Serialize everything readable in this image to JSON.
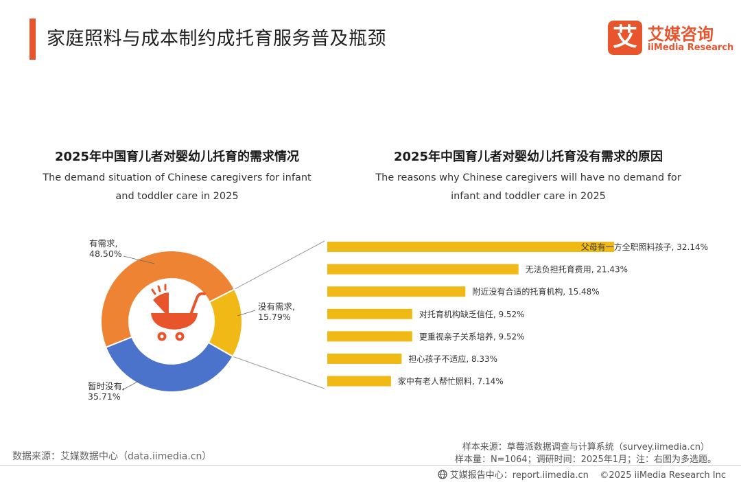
{
  "page": {
    "title": "家庭照料与成本制约成托育服务普及瓶颈"
  },
  "brand": {
    "logo_char": "艾",
    "name_cn": "艾媒咨询",
    "name_en": "iiMedia Research",
    "color": "#e8552d"
  },
  "colors": {
    "accent": "#e8552d",
    "orange": "#ee8334",
    "yellow": "#f1b915",
    "blue": "#4b73cc",
    "icon": "#e8552d",
    "connector": "#9a9a9a"
  },
  "chart_data": [
    {
      "type": "pie",
      "title": "2025年中国育儿者对婴幼儿托育的需求情况",
      "subtitle": "The demand situation of Chinese caregivers for infant and toddler care in 2025",
      "subtitle_lines": [
        "The demand situation of Chinese caregivers for infant",
        "and toddler care in 2025"
      ],
      "style": "donut",
      "center_icon": "stroller-icon",
      "slices": [
        {
          "label": "有需求,",
          "value": 48.5,
          "value_label": "48.50%",
          "color": "#ee8334"
        },
        {
          "label": "没有需求,",
          "value": 15.79,
          "value_label": "15.79%",
          "color": "#f1b915"
        },
        {
          "label": "暂时没有,",
          "value": 35.71,
          "value_label": "35.71%",
          "color": "#4b73cc"
        }
      ]
    },
    {
      "type": "bar",
      "orientation": "horizontal",
      "title": "2025年中国育儿者对婴幼儿托育没有需求的原因",
      "subtitle": "The reasons why Chinese caregivers will have no demand for infant and toddler care in 2025",
      "subtitle_lines": [
        "The reasons why Chinese caregivers will have no demand for",
        "infant and toddler care in 2025"
      ],
      "color": "#f1b915",
      "xlim": [
        0,
        32.14
      ],
      "categories": [
        "父母有一方全职照料孩子",
        "无法负担托育费用",
        "附近没有合适的托育机构",
        "对托育机构缺乏信任",
        "更重视亲子关系培养",
        "担心孩子不适应",
        "家中有老人帮忙照料"
      ],
      "values": [
        32.14,
        21.43,
        15.48,
        9.52,
        9.52,
        8.33,
        7.14
      ],
      "data_labels": [
        "父母有一方全职照料孩子, 32.14%",
        "无法负担托育费用, 21.43%",
        "附近没有合适的托育机构, 15.48%",
        "对托育机构缺乏信任, 9.52%",
        "更重视亲子关系培养, 9.52%",
        "担心孩子不适应, 8.33%",
        "家中有老人帮忙照料, 7.14%"
      ]
    }
  ],
  "footer": {
    "source": "数据来源：艾媒数据中心（data.iimedia.cn）",
    "sample_source": "样本来源：草莓派数据调查与计算系统（survey.iimedia.cn）",
    "sample_info": "样本量：N=1064；调研时间：2025年1月；注：右图为多选题。",
    "report_center": "艾媒报告中心：report.iimedia.cn",
    "copyright": "©2025  iiMedia Research  Inc"
  }
}
